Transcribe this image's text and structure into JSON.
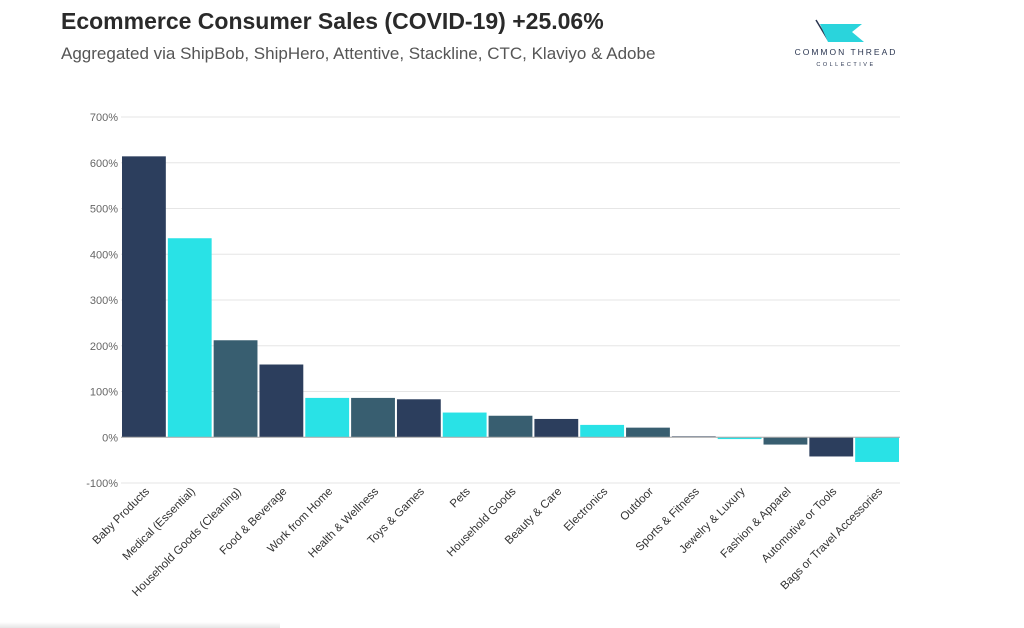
{
  "header": {
    "title": "Ecommerce Consumer Sales (COVID-19) +25.06%",
    "subtitle": "Aggregated via ShipBob, ShipHero, Attentive, Stackline, CTC, Klaviyo & Adobe"
  },
  "logo": {
    "line1": "COMMON THREAD",
    "line2": "COLLECTIVE",
    "icon": "flag-icon",
    "color": "#2ad4dc"
  },
  "colors": {
    "navy": "#2c3e5d",
    "cyan": "#29e2e6",
    "slate": "#385e70",
    "grid": "#e6e6e6",
    "zero_line": "#aaaaaa"
  },
  "chart_data": {
    "type": "bar",
    "title": "Ecommerce Consumer Sales (COVID-19) +25.06%",
    "subtitle": "Aggregated via ShipBob, ShipHero, Attentive, Stackline, CTC, Klaviyo & Adobe",
    "xlabel": "",
    "ylabel": "",
    "ylim": [
      -100,
      700
    ],
    "yticks": [
      -100,
      0,
      100,
      200,
      300,
      400,
      500,
      600,
      700
    ],
    "ytick_labels": [
      "-100%",
      "0%",
      "100%",
      "200%",
      "300%",
      "400%",
      "500%",
      "600%",
      "700%"
    ],
    "grid": true,
    "legend": "none",
    "categories": [
      "Baby Products",
      "Medical (Essential)",
      "Household Goods (Cleaning)",
      "Food & Beverage",
      "Work from Home",
      "Health & Wellness",
      "Toys & Games",
      "Pets",
      "Household Goods",
      "Beauty & Care",
      "Electronics",
      "Outdoor",
      "Sports & Fitness",
      "Jewelry & Luxury",
      "Fashion & Apparel",
      "Automotive or Tools",
      "Bags or Travel Accessories"
    ],
    "values": [
      614,
      435,
      212,
      159,
      86,
      86,
      83,
      54,
      47,
      40,
      27,
      21,
      2,
      -4,
      -16,
      -42,
      -54
    ],
    "bar_colors": [
      "#2c3e5d",
      "#29e2e6",
      "#385e70",
      "#2c3e5d",
      "#29e2e6",
      "#385e70",
      "#2c3e5d",
      "#29e2e6",
      "#385e70",
      "#2c3e5d",
      "#29e2e6",
      "#385e70",
      "#2c3e5d",
      "#29e2e6",
      "#385e70",
      "#2c3e5d",
      "#29e2e6"
    ]
  }
}
